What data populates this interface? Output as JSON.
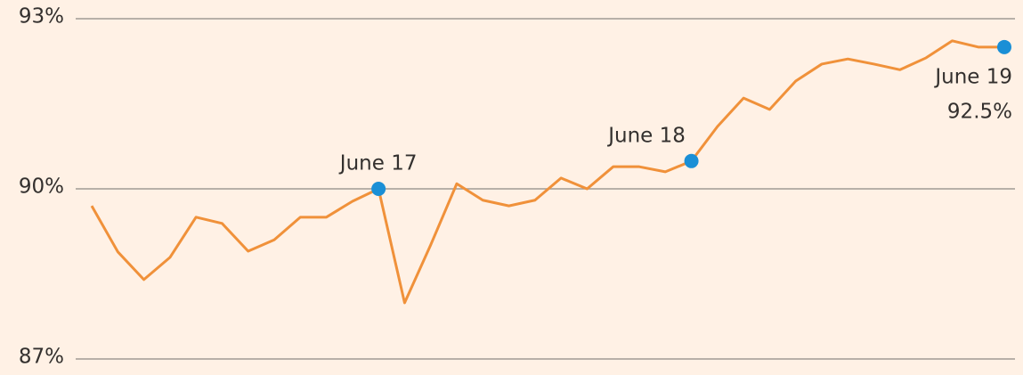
{
  "chart_data": {
    "type": "line",
    "values": [
      89.7,
      88.89,
      88.4,
      88.79,
      89.5,
      89.39,
      88.9,
      89.1,
      89.5,
      89.5,
      89.78,
      90.0,
      87.99,
      89.01,
      90.09,
      89.8,
      89.7,
      89.8,
      90.19,
      90.0,
      90.39,
      90.39,
      90.3,
      90.49,
      91.1,
      91.6,
      91.4,
      91.9,
      92.2,
      92.29,
      92.2,
      92.1,
      92.31,
      92.61,
      92.5,
      92.5
    ],
    "color": "#f0913a",
    "marker_color": "#1a8fd6",
    "ylim": [
      87,
      93
    ],
    "yticks": [
      {
        "value": 87,
        "label": "87%"
      },
      {
        "value": 90,
        "label": "90%"
      },
      {
        "value": 93,
        "label": "93%"
      }
    ],
    "grid": true,
    "highlights": [
      {
        "index": 11,
        "label": "June 17"
      },
      {
        "index": 23,
        "label": "June 18"
      },
      {
        "index": 35,
        "label": "June 19",
        "value_label": "92.5%"
      }
    ]
  }
}
